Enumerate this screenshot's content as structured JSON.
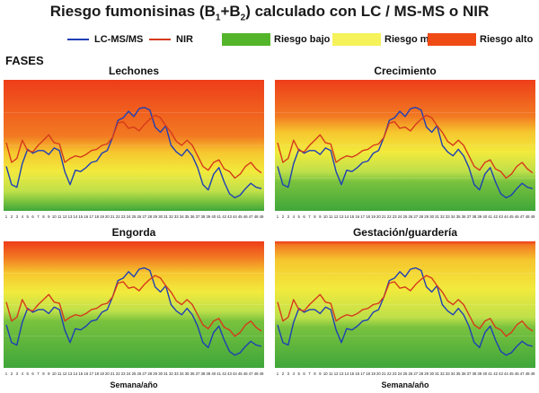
{
  "header": {
    "title_pre": "Riesgo fumonisinas (B",
    "title_sub1": "1",
    "title_mid": "+B",
    "title_sub2": "2",
    "title_post": ") calculado con LC / MS-MS o NIR"
  },
  "legend": {
    "series": [
      {
        "label": "LC-MS/MS",
        "color": "#1f3fb5"
      },
      {
        "label": "NIR",
        "color": "#d63a1a"
      }
    ],
    "risk_bands": [
      {
        "label": "Riesgo bajo",
        "color": "#55b52a"
      },
      {
        "label": "Riesgo medio",
        "color": "#f5f25a"
      },
      {
        "label": "Riesgo alto",
        "color": "#f04a15"
      }
    ]
  },
  "section_label": "FASES",
  "colors": {
    "lc": "#1f3fb5",
    "nir": "#d63a1a",
    "low": "#3fa63a",
    "medium": "#f2ea3c",
    "high": "#ee3d1a"
  },
  "chart_data": [
    {
      "type": "line",
      "title": "Lechones",
      "xlabel": "",
      "x": [
        1,
        2,
        3,
        4,
        5,
        6,
        7,
        8,
        9,
        10,
        11,
        12,
        13,
        14,
        15,
        16,
        17,
        18,
        19,
        20,
        21,
        22,
        23,
        24,
        25,
        26,
        27,
        28,
        29,
        30,
        31,
        32,
        33,
        34,
        35,
        36,
        37,
        38,
        39,
        40,
        41,
        42,
        43,
        44,
        45,
        46,
        47,
        48,
        49
      ],
      "risk_zones": {
        "low_max": 0.15,
        "medium_max": 0.45
      },
      "series": [
        {
          "name": "LC-MS/MS",
          "values": [
            0.34,
            0.2,
            0.18,
            0.36,
            0.47,
            0.44,
            0.46,
            0.46,
            0.43,
            0.48,
            0.46,
            0.3,
            0.2,
            0.31,
            0.3,
            0.33,
            0.37,
            0.38,
            0.44,
            0.46,
            0.56,
            0.69,
            0.71,
            0.76,
            0.72,
            0.78,
            0.79,
            0.77,
            0.64,
            0.6,
            0.65,
            0.5,
            0.45,
            0.42,
            0.47,
            0.42,
            0.33,
            0.2,
            0.16,
            0.28,
            0.33,
            0.22,
            0.13,
            0.1,
            0.12,
            0.17,
            0.21,
            0.18,
            0.17
          ]
        },
        {
          "name": "NIR",
          "values": [
            0.52,
            0.37,
            0.4,
            0.54,
            0.46,
            0.45,
            0.5,
            0.54,
            0.58,
            0.52,
            0.51,
            0.37,
            0.4,
            0.42,
            0.41,
            0.43,
            0.46,
            0.47,
            0.5,
            0.51,
            0.56,
            0.67,
            0.68,
            0.63,
            0.64,
            0.61,
            0.66,
            0.7,
            0.73,
            0.71,
            0.65,
            0.6,
            0.53,
            0.5,
            0.54,
            0.5,
            0.42,
            0.34,
            0.31,
            0.37,
            0.39,
            0.32,
            0.3,
            0.25,
            0.28,
            0.34,
            0.37,
            0.32,
            0.29
          ]
        }
      ]
    },
    {
      "type": "line",
      "title": "Crecimiento",
      "xlabel": "",
      "x": [
        1,
        2,
        3,
        4,
        5,
        6,
        7,
        8,
        9,
        10,
        11,
        12,
        13,
        14,
        15,
        16,
        17,
        18,
        19,
        20,
        21,
        22,
        23,
        24,
        25,
        26,
        27,
        28,
        29,
        30,
        31,
        32,
        33,
        34,
        35,
        36,
        37,
        38,
        39,
        40,
        41,
        42,
        43,
        44,
        45,
        46,
        47,
        48,
        49
      ],
      "risk_zones": {
        "low_max": 0.3,
        "medium_max": 0.6
      },
      "series": [
        {
          "name": "LC-MS/MS",
          "values": [
            0.34,
            0.2,
            0.18,
            0.36,
            0.47,
            0.44,
            0.46,
            0.46,
            0.43,
            0.48,
            0.46,
            0.3,
            0.2,
            0.31,
            0.3,
            0.33,
            0.37,
            0.38,
            0.44,
            0.46,
            0.56,
            0.69,
            0.71,
            0.76,
            0.72,
            0.78,
            0.79,
            0.77,
            0.64,
            0.6,
            0.65,
            0.5,
            0.45,
            0.42,
            0.47,
            0.42,
            0.33,
            0.2,
            0.16,
            0.28,
            0.33,
            0.22,
            0.13,
            0.1,
            0.12,
            0.17,
            0.21,
            0.18,
            0.17
          ]
        },
        {
          "name": "NIR",
          "values": [
            0.52,
            0.37,
            0.4,
            0.54,
            0.46,
            0.45,
            0.5,
            0.54,
            0.58,
            0.52,
            0.51,
            0.37,
            0.4,
            0.42,
            0.41,
            0.43,
            0.46,
            0.47,
            0.5,
            0.51,
            0.56,
            0.67,
            0.68,
            0.63,
            0.64,
            0.61,
            0.66,
            0.7,
            0.73,
            0.71,
            0.65,
            0.6,
            0.53,
            0.5,
            0.54,
            0.5,
            0.42,
            0.34,
            0.31,
            0.37,
            0.39,
            0.32,
            0.3,
            0.25,
            0.28,
            0.34,
            0.37,
            0.32,
            0.29
          ]
        }
      ]
    },
    {
      "type": "line",
      "title": "Engorda",
      "xlabel": "Semana/año",
      "x": [
        1,
        2,
        3,
        4,
        5,
        6,
        7,
        8,
        9,
        10,
        11,
        12,
        13,
        14,
        15,
        16,
        17,
        18,
        19,
        20,
        21,
        22,
        23,
        24,
        25,
        26,
        27,
        28,
        29,
        30,
        31,
        32,
        33,
        34,
        35,
        36,
        37,
        38,
        39,
        40,
        41,
        42,
        43,
        44,
        45,
        46,
        47,
        48,
        49
      ],
      "risk_zones": {
        "low_max": 0.45,
        "medium_max": 0.75
      },
      "series": [
        {
          "name": "LC-MS/MS",
          "values": [
            0.34,
            0.2,
            0.18,
            0.36,
            0.47,
            0.44,
            0.46,
            0.46,
            0.43,
            0.48,
            0.46,
            0.3,
            0.2,
            0.31,
            0.3,
            0.33,
            0.37,
            0.38,
            0.44,
            0.46,
            0.56,
            0.69,
            0.71,
            0.76,
            0.72,
            0.78,
            0.79,
            0.77,
            0.64,
            0.6,
            0.65,
            0.5,
            0.45,
            0.42,
            0.47,
            0.42,
            0.33,
            0.2,
            0.16,
            0.28,
            0.33,
            0.22,
            0.13,
            0.1,
            0.12,
            0.17,
            0.21,
            0.18,
            0.17
          ]
        },
        {
          "name": "NIR",
          "values": [
            0.52,
            0.37,
            0.4,
            0.54,
            0.46,
            0.45,
            0.5,
            0.54,
            0.58,
            0.52,
            0.51,
            0.37,
            0.4,
            0.42,
            0.41,
            0.43,
            0.46,
            0.47,
            0.5,
            0.51,
            0.56,
            0.67,
            0.68,
            0.63,
            0.64,
            0.61,
            0.66,
            0.7,
            0.73,
            0.71,
            0.65,
            0.6,
            0.53,
            0.5,
            0.54,
            0.5,
            0.42,
            0.34,
            0.31,
            0.37,
            0.39,
            0.32,
            0.3,
            0.25,
            0.28,
            0.34,
            0.37,
            0.32,
            0.29
          ]
        }
      ]
    },
    {
      "type": "line",
      "title": "Gestación/guardería",
      "xlabel": "Semana/año",
      "x": [
        1,
        2,
        3,
        4,
        5,
        6,
        7,
        8,
        9,
        10,
        11,
        12,
        13,
        14,
        15,
        16,
        17,
        18,
        19,
        20,
        21,
        22,
        23,
        24,
        25,
        26,
        27,
        28,
        29,
        30,
        31,
        32,
        33,
        34,
        35,
        36,
        37,
        38,
        39,
        40,
        41,
        42,
        43,
        44,
        45,
        46,
        47,
        48,
        49
      ],
      "risk_zones": {
        "low_max": 0.4,
        "medium_max": 0.85
      },
      "series": [
        {
          "name": "LC-MS/MS",
          "values": [
            0.34,
            0.2,
            0.18,
            0.36,
            0.47,
            0.44,
            0.46,
            0.46,
            0.43,
            0.48,
            0.46,
            0.3,
            0.2,
            0.31,
            0.3,
            0.33,
            0.37,
            0.38,
            0.44,
            0.46,
            0.56,
            0.69,
            0.71,
            0.76,
            0.72,
            0.78,
            0.79,
            0.77,
            0.64,
            0.6,
            0.65,
            0.5,
            0.45,
            0.42,
            0.47,
            0.42,
            0.33,
            0.2,
            0.16,
            0.28,
            0.33,
            0.22,
            0.13,
            0.1,
            0.12,
            0.17,
            0.21,
            0.18,
            0.17
          ]
        },
        {
          "name": "NIR",
          "values": [
            0.52,
            0.37,
            0.4,
            0.54,
            0.46,
            0.45,
            0.5,
            0.54,
            0.58,
            0.52,
            0.51,
            0.37,
            0.4,
            0.42,
            0.41,
            0.43,
            0.46,
            0.47,
            0.5,
            0.51,
            0.56,
            0.67,
            0.68,
            0.63,
            0.64,
            0.61,
            0.66,
            0.7,
            0.73,
            0.71,
            0.65,
            0.6,
            0.53,
            0.5,
            0.54,
            0.5,
            0.42,
            0.34,
            0.31,
            0.37,
            0.39,
            0.32,
            0.3,
            0.25,
            0.28,
            0.34,
            0.37,
            0.32,
            0.29
          ]
        }
      ]
    }
  ]
}
